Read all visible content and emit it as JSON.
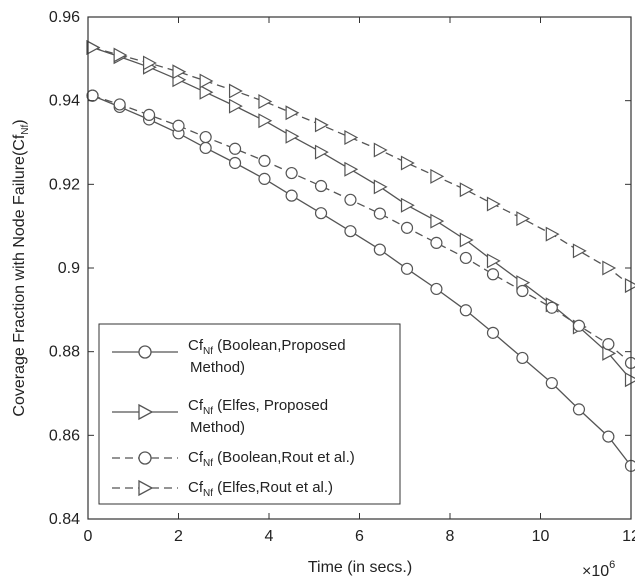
{
  "chart_data": {
    "type": "line",
    "xlabel": "Time (in secs.)",
    "ylabel": "Coverage Fraction with Node Failure(Cf",
    "ylabel_sub": "Nf",
    "ylabel_end": ")",
    "x_multiplier": "×10",
    "x_multiplier_exp": "6",
    "xlim": [
      0,
      12
    ],
    "ylim": [
      0.84,
      0.96
    ],
    "x_ticks": [
      0,
      2,
      4,
      6,
      8,
      10,
      12
    ],
    "x_tick_labels": [
      "0",
      "2",
      "4",
      "6",
      "8",
      "10",
      "12"
    ],
    "y_ticks": [
      0.84,
      0.86,
      0.88,
      0.9,
      0.92,
      0.94,
      0.96
    ],
    "y_tick_labels": [
      "0.84",
      "0.86",
      "0.88",
      "0.9",
      "0.92",
      "0.94",
      "0.96"
    ],
    "grid": false,
    "legend_position": "bottom-left",
    "series": [
      {
        "name_prefix": "Cf",
        "name_sub": "Nf",
        "name_line1": " (Boolean,Proposed",
        "name_line2": "Method)",
        "line_style": "solid",
        "marker": "circle",
        "color": "#555555",
        "x": [
          0.1,
          0.7,
          1.35,
          2.0,
          2.6,
          3.25,
          3.9,
          4.5,
          5.15,
          5.8,
          6.45,
          7.05,
          7.7,
          8.35,
          8.95,
          9.6,
          10.25,
          10.85,
          11.5,
          12.0
        ],
        "y": [
          0.9412,
          0.9385,
          0.9355,
          0.9322,
          0.9287,
          0.9251,
          0.9213,
          0.9173,
          0.9131,
          0.9088,
          0.9044,
          0.8998,
          0.895,
          0.8899,
          0.8845,
          0.8785,
          0.8725,
          0.8662,
          0.8597,
          0.8527
        ]
      },
      {
        "name_prefix": "Cf",
        "name_sub": "Nf",
        "name_line1": " (Elfes, Proposed",
        "name_line2": "Method)",
        "line_style": "solid",
        "marker": "triangle-right",
        "color": "#555555",
        "x": [
          0.1,
          0.7,
          1.35,
          2.0,
          2.6,
          3.25,
          3.9,
          4.5,
          5.15,
          5.8,
          6.45,
          7.05,
          7.7,
          8.35,
          8.95,
          9.6,
          10.25,
          10.85,
          11.5,
          12.0
        ],
        "y": [
          0.9527,
          0.9505,
          0.948,
          0.945,
          0.942,
          0.9387,
          0.9352,
          0.9315,
          0.9277,
          0.9236,
          0.9194,
          0.915,
          0.9112,
          0.9067,
          0.9017,
          0.8965,
          0.8912,
          0.8859,
          0.8796,
          0.8733
        ]
      },
      {
        "name_prefix": "Cf",
        "name_sub": "Nf",
        "name_line1": " (Boolean,Rout et al.)",
        "name_line2": "",
        "line_style": "dashed",
        "marker": "circle",
        "color": "#555555",
        "x": [
          0.1,
          0.7,
          1.35,
          2.0,
          2.6,
          3.25,
          3.9,
          4.5,
          5.15,
          5.8,
          6.45,
          7.05,
          7.7,
          8.35,
          8.95,
          9.6,
          10.25,
          10.85,
          11.5,
          12.0
        ],
        "y": [
          0.9412,
          0.9391,
          0.9366,
          0.934,
          0.9313,
          0.9285,
          0.9256,
          0.9227,
          0.9196,
          0.9163,
          0.913,
          0.9096,
          0.906,
          0.9024,
          0.8985,
          0.8945,
          0.8905,
          0.8862,
          0.8818,
          0.8773
        ]
      },
      {
        "name_prefix": "Cf",
        "name_sub": "Nf",
        "name_line1": " (Elfes,Rout et al.)",
        "name_line2": "",
        "line_style": "dashed",
        "marker": "triangle-right",
        "color": "#555555",
        "x": [
          0.1,
          0.7,
          1.35,
          2.0,
          2.6,
          3.25,
          3.9,
          4.5,
          5.15,
          5.8,
          6.45,
          7.05,
          7.7,
          8.35,
          8.95,
          9.6,
          10.25,
          10.85,
          11.5,
          12.0
        ],
        "y": [
          0.9527,
          0.9509,
          0.949,
          0.9469,
          0.9447,
          0.9423,
          0.9398,
          0.9371,
          0.9342,
          0.9312,
          0.9282,
          0.9251,
          0.9219,
          0.9187,
          0.9153,
          0.9118,
          0.9081,
          0.9041,
          0.9,
          0.8958
        ]
      }
    ]
  }
}
